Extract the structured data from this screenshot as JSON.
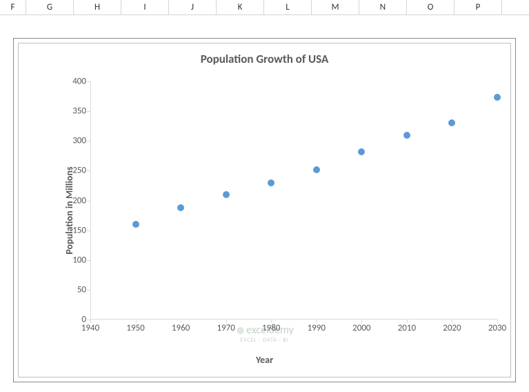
{
  "columns": {
    "first_width": 38,
    "headers": [
      "F",
      "G",
      "H",
      "I",
      "J",
      "K",
      "L",
      "M",
      "N",
      "O",
      "P"
    ],
    "width": 69
  },
  "chart": {
    "type": "scatter",
    "title": "Population Growth of USA",
    "title_fontsize": 17,
    "title_color": "#595959",
    "x_axis": {
      "title": "Year",
      "min": 1940,
      "max": 2030,
      "tick_step": 10,
      "ticks": [
        1940,
        1950,
        1960,
        1970,
        1980,
        1990,
        2000,
        2010,
        2020,
        2030
      ],
      "label_fontsize": 13,
      "label_color": "#595959"
    },
    "y_axis": {
      "title": "Population in Millions",
      "min": 0,
      "max": 400,
      "tick_step": 50,
      "ticks": [
        0,
        50,
        100,
        150,
        200,
        250,
        300,
        350,
        400
      ],
      "label_fontsize": 13,
      "label_color": "#595959"
    },
    "series": {
      "x": [
        1950,
        1960,
        1970,
        1980,
        1990,
        2000,
        2010,
        2020,
        2030
      ],
      "y": [
        160,
        188,
        210,
        230,
        252,
        282,
        310,
        331,
        373
      ],
      "marker_color": "#5b9bd5",
      "marker_size": 10,
      "marker_style": "circle"
    },
    "background_color": "#ffffff",
    "border_color": "#bfbfbf",
    "axis_line_color": "#d9d9d9"
  },
  "watermark": {
    "main": "exceldemy",
    "sub": "EXCEL · DATA · BI",
    "color": "#5a7a5a"
  }
}
